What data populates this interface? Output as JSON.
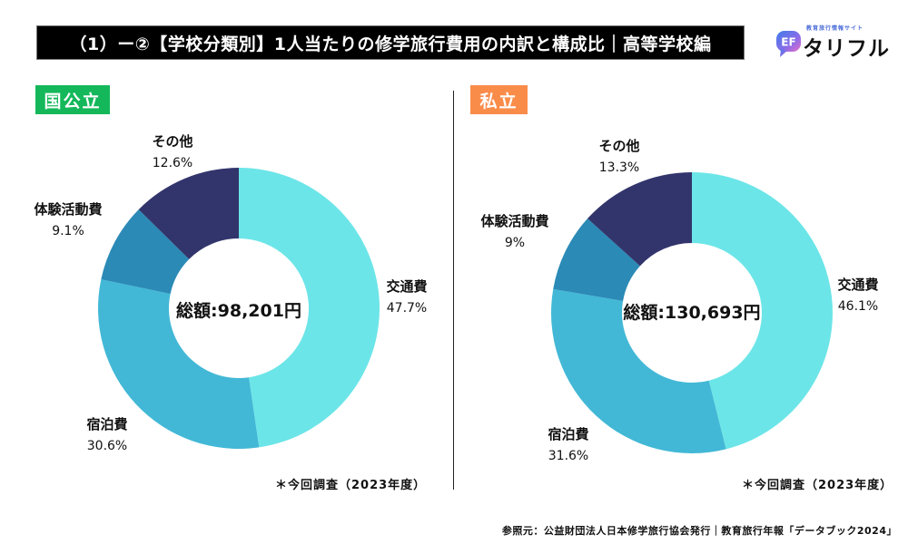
{
  "header": {
    "title": "（1）ー②【学校分類別】1人当たりの修学旅行費用の内訳と構成比｜高等学校編"
  },
  "logo": {
    "tagline": "教育旅行情報サイト",
    "name": "タリフル",
    "icon": "speech-bubble-logo-icon",
    "icon_text": "EF"
  },
  "colors": {
    "交通費": "#6ce5e8",
    "宿泊費": "#42b8d6",
    "体験活動費": "#2b8ab6",
    "その他": "#32356c",
    "national_badge": "#14b85a",
    "private_badge": "#fa8c4a"
  },
  "chart_data": [
    {
      "type": "pie",
      "variant": "donut",
      "title": "国公立",
      "center_label": "総額:98,201円",
      "total_yen": 98201,
      "start": "top",
      "direction": "clockwise",
      "categories": [
        "交通費",
        "宿泊費",
        "体験活動費",
        "その他"
      ],
      "values": [
        47.7,
        30.6,
        9.1,
        12.6
      ],
      "value_labels": [
        "47.7%",
        "30.6%",
        "9.1%",
        "12.6%"
      ],
      "note": "＊今回調査（2023年度）"
    },
    {
      "type": "pie",
      "variant": "donut",
      "title": "私立",
      "center_label": "総額:130,693円",
      "total_yen": 130693,
      "start": "top",
      "direction": "clockwise",
      "categories": [
        "交通費",
        "宿泊費",
        "体験活動費",
        "その他"
      ],
      "values": [
        46.1,
        31.6,
        9,
        13.3
      ],
      "value_labels": [
        "46.1%",
        "31.6%",
        "9%",
        "13.3%"
      ],
      "note": "＊今回調査（2023年度）"
    }
  ],
  "footer": {
    "source": "参照元：公益財団法人日本修学旅行協会発行｜教育旅行年報「データブック2024」"
  }
}
